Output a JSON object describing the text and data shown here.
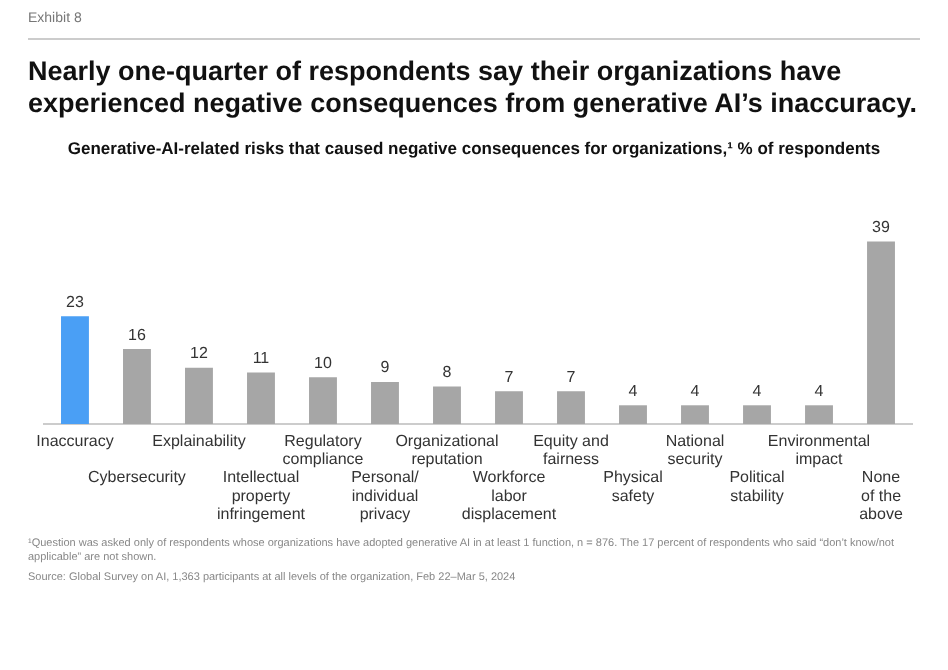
{
  "chart_data": {
    "type": "bar",
    "title": "Nearly one-quarter of respondents say their organizations have experienced negative consequences from generative AI’s inaccuracy.",
    "subtitle": "Generative-AI-related risks that caused negative consequences for organizations,¹ % of respondents",
    "categories": [
      "Inaccuracy",
      "Cybersecurity",
      "Explainability",
      "Intellectual\nproperty\ninfringement",
      "Regulatory\ncompliance",
      "Personal/\nindividual\nprivacy",
      "Organizational\nreputation",
      "Workforce\nlabor\ndisplacement",
      "Equity and\nfairness",
      "Physical\nsafety",
      "National\nsecurity",
      "Political\nstability",
      "Environmental\nimpact",
      "None\nof the\nabove"
    ],
    "values": [
      23,
      16,
      12,
      11,
      10,
      9,
      8,
      7,
      7,
      4,
      4,
      4,
      4,
      39
    ],
    "colors": [
      "#4a9ff5",
      "#a6a6a6",
      "#a6a6a6",
      "#a6a6a6",
      "#a6a6a6",
      "#a6a6a6",
      "#a6a6a6",
      "#a6a6a6",
      "#a6a6a6",
      "#a6a6a6",
      "#a6a6a6",
      "#a6a6a6",
      "#a6a6a6",
      "#a6a6a6"
    ],
    "data_labels": true,
    "grid": false,
    "legend": false,
    "annotations": [
      "Exhibit 8",
      "¹Question was asked only of respondents whose organizations have adopted generative AI in at least 1 function, n = 876. The 17 percent of respondents who said “don’t know/not applicable” are not shown.",
      "Source: Global Survey on AI, 1,363 participants at all levels of the organization, Feb 22–Mar 5, 2024"
    ]
  }
}
